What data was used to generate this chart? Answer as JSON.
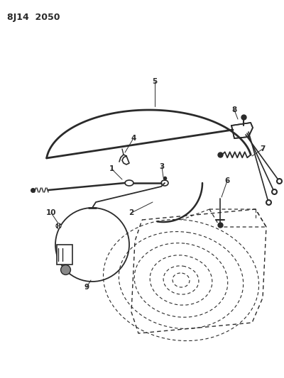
{
  "title": "8J14  2050",
  "bg_color": "#ffffff",
  "line_color": "#2a2a2a",
  "figsize": [
    4.0,
    5.33
  ],
  "dpi": 100
}
